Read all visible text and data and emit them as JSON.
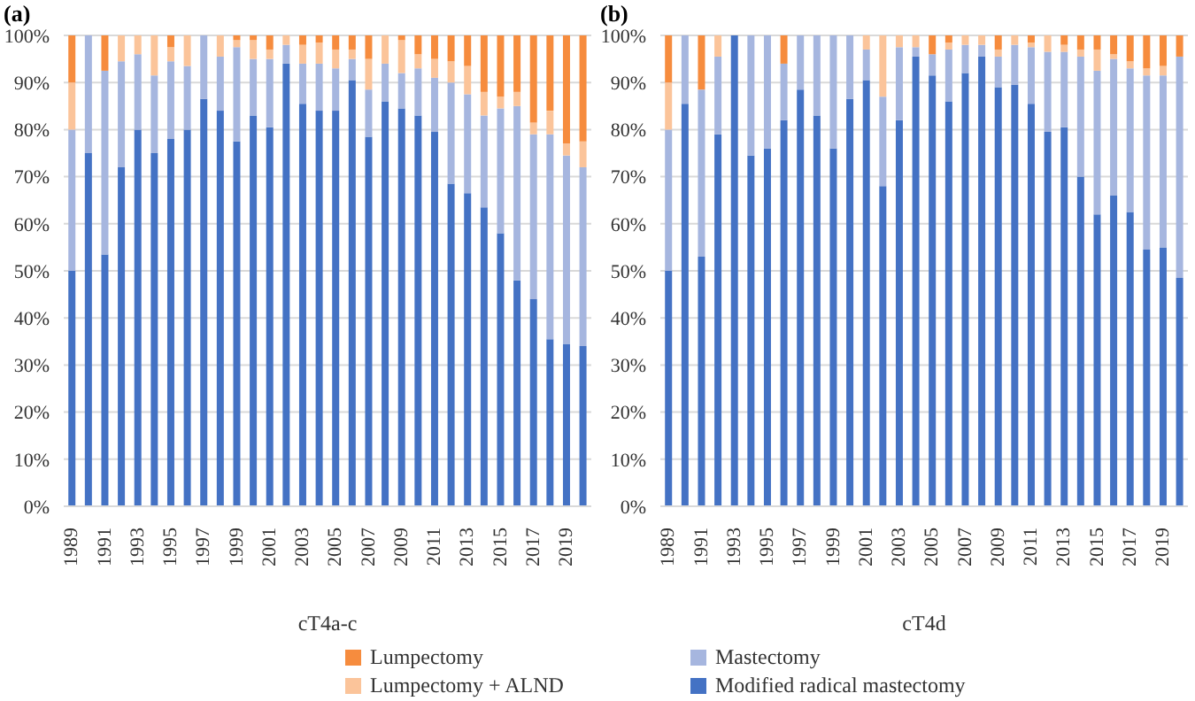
{
  "chart_data": [
    {
      "type": "bar",
      "title": "(a)",
      "xlabel": "cT4a-c",
      "stacked": true,
      "grid": "y",
      "legend": "bottom",
      "categories": [
        "1989",
        null,
        "1991",
        null,
        "1993",
        null,
        "1995",
        null,
        "1997",
        null,
        "1999",
        null,
        "2001",
        null,
        "2003",
        null,
        "2005",
        null,
        "2007",
        null,
        "2009",
        null,
        "2011",
        null,
        "2013",
        null,
        "2015",
        null,
        "2017",
        null,
        "2019",
        null
      ],
      "ylim": [
        0,
        100
      ],
      "yticks": [
        {
          "value": 0,
          "label": "0%"
        },
        {
          "value": 10,
          "label": "10%"
        },
        {
          "value": 20,
          "label": "20%"
        },
        {
          "value": 30,
          "label": "30%"
        },
        {
          "value": 40,
          "label": "40%"
        },
        {
          "value": 50,
          "label": "50%"
        },
        {
          "value": 60,
          "label": "60%"
        },
        {
          "value": 70,
          "label": "70%"
        },
        {
          "value": 80,
          "label": "80%"
        },
        {
          "value": 90,
          "label": "90%"
        },
        {
          "value": 100,
          "label": "100%"
        }
      ],
      "series": [
        {
          "name": "Modified radical mastectomy",
          "color": "#4472c4",
          "values": [
            50,
            75,
            53.5,
            72,
            80,
            75,
            78,
            80,
            86.5,
            84,
            77.5,
            83,
            80.5,
            94,
            85.5,
            84,
            84,
            90.5,
            78.5,
            86,
            84.5,
            83,
            79.5,
            68.5,
            66.5,
            63.5,
            58,
            48,
            44,
            35.5,
            34.5,
            34
          ]
        },
        {
          "name": "Mastectomy",
          "color": "#a6b6df",
          "values": [
            30,
            25,
            39,
            22.5,
            16,
            16.5,
            16.5,
            13.5,
            13.5,
            11.5,
            20,
            12,
            14.5,
            4,
            8.5,
            10,
            9,
            4.5,
            10,
            8,
            7.5,
            10,
            11.5,
            21.5,
            21,
            19.5,
            26.5,
            37,
            35,
            43.5,
            40,
            38
          ]
        },
        {
          "name": "Lumpectomy + ALND",
          "color": "#fbc49a",
          "values": [
            10,
            0,
            0,
            5.5,
            4,
            8.5,
            3,
            6.5,
            0,
            4.5,
            1.5,
            4,
            2,
            2,
            4,
            4.5,
            4,
            2,
            6.5,
            6,
            7,
            3,
            4,
            4.5,
            6,
            5,
            2.5,
            3,
            2.5,
            5,
            2.5,
            5.5
          ]
        },
        {
          "name": "Lumpectomy",
          "color": "#f68c3e",
          "values": [
            10,
            0,
            7.5,
            0,
            0,
            0,
            2.5,
            0,
            0,
            0,
            1,
            1,
            3,
            0,
            2,
            1.5,
            3,
            3,
            5,
            0,
            1,
            4,
            5,
            5.5,
            6.5,
            12,
            13,
            12,
            18.5,
            16,
            23,
            22.5
          ]
        }
      ]
    },
    {
      "type": "bar",
      "title": "(b)",
      "xlabel": "cT4d",
      "stacked": true,
      "grid": "y",
      "categories": [
        "1989",
        null,
        "1991",
        null,
        "1993",
        null,
        "1995",
        null,
        "1997",
        null,
        "1999",
        null,
        "2001",
        null,
        "2003",
        null,
        "2005",
        null,
        "2007",
        null,
        "2009",
        null,
        "2011",
        null,
        "2013",
        null,
        "2015",
        null,
        "2017",
        null,
        "2019",
        null
      ],
      "ylim": [
        0,
        100
      ],
      "yticks": [
        {
          "value": 0,
          "label": "0%"
        },
        {
          "value": 10,
          "label": "10%"
        },
        {
          "value": 20,
          "label": "20%"
        },
        {
          "value": 30,
          "label": "30%"
        },
        {
          "value": 40,
          "label": "40%"
        },
        {
          "value": 50,
          "label": "50%"
        },
        {
          "value": 60,
          "label": "60%"
        },
        {
          "value": 70,
          "label": "70%"
        },
        {
          "value": 80,
          "label": "80%"
        },
        {
          "value": 90,
          "label": "90%"
        },
        {
          "value": 100,
          "label": "100%"
        }
      ],
      "series": [
        {
          "color": "#4472c4",
          "values": [
            50,
            85.5,
            53,
            79,
            100,
            74.5,
            76,
            82,
            88.5,
            83,
            76,
            86.5,
            90.5,
            68,
            82,
            95.5,
            91.5,
            86,
            92,
            95.5,
            89,
            89.5,
            85.5,
            79.5,
            80.5,
            70,
            62,
            66,
            62.5,
            54.5,
            55,
            48.5
          ]
        },
        {
          "color": "#a6b6df",
          "values": [
            30,
            14.5,
            35.5,
            16.5,
            0,
            25.5,
            24,
            12,
            11.5,
            17,
            24,
            13.5,
            6.5,
            19,
            15.5,
            2,
            4.5,
            11,
            6,
            2.5,
            6.5,
            8.5,
            12,
            17,
            16,
            25.5,
            30.5,
            29,
            30.5,
            37,
            36.5,
            47
          ]
        },
        {
          "color": "#fbc49a",
          "values": [
            10,
            0,
            0,
            4.5,
            0,
            0,
            0,
            0,
            0,
            0,
            0,
            0,
            3,
            13,
            2.5,
            2.5,
            0,
            1.5,
            2,
            2,
            1.5,
            2,
            1,
            3.5,
            1.5,
            1.5,
            4.5,
            1,
            1.5,
            1.5,
            2,
            0
          ]
        },
        {
          "color": "#f68c3e",
          "values": [
            10,
            0,
            11.5,
            0,
            0,
            0,
            0,
            6,
            0,
            0,
            0,
            0,
            0,
            0,
            0,
            0,
            4,
            1.5,
            0,
            0,
            3,
            0,
            1.5,
            0,
            2,
            3,
            3,
            4,
            5.5,
            7,
            6.5,
            4.5
          ]
        }
      ]
    }
  ]
}
